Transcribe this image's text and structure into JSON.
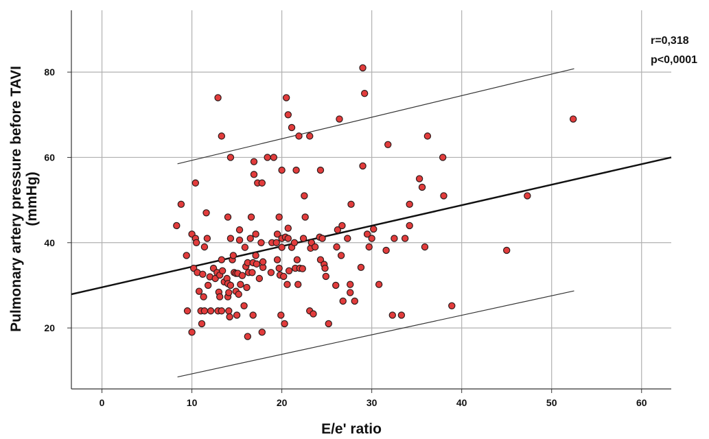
{
  "chart_data": {
    "type": "scatter",
    "x_label": "E/e' ratio",
    "y_label": [
      "Pulmonary artery pressure before TAVI",
      "(mmHg)"
    ],
    "annotations": [
      "r=0,318",
      "p<0,0001"
    ],
    "xlim": [
      -3.4,
      63.3
    ],
    "xticks": [
      0,
      10,
      20,
      30,
      40,
      50,
      60
    ],
    "ylim": [
      5.7,
      94.5
    ],
    "yticks": [
      20,
      40,
      60,
      80
    ],
    "grid": true,
    "color": "#e23c3c",
    "x": [
      8.3,
      8.8,
      9.4,
      9.5,
      10.0,
      10.0,
      10.4,
      10.2,
      10.4,
      10.5,
      10.6,
      10.8,
      11.0,
      11.1,
      11.2,
      11.3,
      11.4,
      11.4,
      11.6,
      11.7,
      11.8,
      12.0,
      12.1,
      12.4,
      12.6,
      12.8,
      12.9,
      12.9,
      13.0,
      13.1,
      13.1,
      13.3,
      13.3,
      13.3,
      13.4,
      13.6,
      13.9,
      14.0,
      14.0,
      14.0,
      14.1,
      14.1,
      14.2,
      14.3,
      14.3,
      14.3,
      14.5,
      14.6,
      14.7,
      14.9,
      14.9,
      15.0,
      15.1,
      15.2,
      15.3,
      15.3,
      15.4,
      15.6,
      15.8,
      15.9,
      16.0,
      16.1,
      16.2,
      16.2,
      16.3,
      16.5,
      16.6,
      16.7,
      16.8,
      16.8,
      16.9,
      16.9,
      17.1,
      17.1,
      17.2,
      17.3,
      17.5,
      17.7,
      17.8,
      17.8,
      17.9,
      17.9,
      18.4,
      18.8,
      18.9,
      19.1,
      19.4,
      19.5,
      19.5,
      19.7,
      19.7,
      19.8,
      19.9,
      20.0,
      20.0,
      20.0,
      20.2,
      20.3,
      20.4,
      20.5,
      20.6,
      20.7,
      20.7,
      20.7,
      20.8,
      21.1,
      21.1,
      21.4,
      21.5,
      21.6,
      21.7,
      21.8,
      21.9,
      22.0,
      22.3,
      22.4,
      22.5,
      22.6,
      23.1,
      23.1,
      23.2,
      23.3,
      23.5,
      23.7,
      24.2,
      24.3,
      24.3,
      24.5,
      24.7,
      24.8,
      24.9,
      25.2,
      26.0,
      26.1,
      26.2,
      26.4,
      26.6,
      26.7,
      26.8,
      27.3,
      27.6,
      27.6,
      27.7,
      28.1,
      28.8,
      29.0,
      29.0,
      29.2,
      29.5,
      29.7,
      30.0,
      30.2,
      30.8,
      31.6,
      31.8,
      32.3,
      32.5,
      33.3,
      33.7,
      34.2,
      34.2,
      35.3,
      35.6,
      35.9,
      36.2,
      37.9,
      38.0,
      38.9,
      45.0,
      47.3,
      52.4
    ],
    "values": [
      44,
      49,
      37,
      24,
      19,
      42,
      54,
      34,
      41,
      40,
      33,
      28.6,
      24,
      21,
      32.6,
      27.3,
      24,
      39,
      47,
      41,
      30,
      32,
      24,
      34,
      31.6,
      33,
      74,
      24,
      28.4,
      27.3,
      32.4,
      65,
      36,
      24,
      33.4,
      30.8,
      31.6,
      46,
      30.4,
      27.3,
      28.3,
      24,
      22.6,
      60,
      41,
      30,
      36,
      37,
      33,
      28.6,
      32.8,
      23,
      32.8,
      27.9,
      43,
      40.6,
      30.2,
      32.3,
      25.2,
      38.9,
      34.4,
      29.5,
      18,
      35.3,
      33,
      41,
      46,
      33,
      23,
      35.3,
      59,
      56,
      42,
      37,
      35,
      54,
      31.6,
      40,
      54,
      19,
      34.2,
      35.5,
      60,
      33,
      40,
      60,
      40,
      36,
      42,
      34,
      46,
      32.4,
      23,
      57,
      41,
      38.9,
      32.1,
      21,
      41.3,
      74,
      30.2,
      70,
      41,
      43.4,
      33.4,
      67,
      38.9,
      40,
      34,
      57,
      36,
      30.2,
      65,
      34,
      33.9,
      41,
      51,
      46,
      65,
      24,
      38.7,
      40,
      23.3,
      39,
      41.3,
      57,
      36,
      41,
      34.9,
      34,
      32.1,
      21,
      30,
      39,
      43,
      69,
      37,
      44,
      26.3,
      41,
      30.2,
      28.3,
      49,
      26.3,
      34.2,
      58,
      81,
      75,
      42,
      39,
      41,
      43.2,
      30.2,
      38.2,
      63,
      23,
      41,
      23,
      41,
      44,
      49,
      55,
      53,
      39,
      65,
      60,
      51,
      25.2,
      38.2,
      51,
      69
    ],
    "lines": [
      {
        "x": [
          -3.4,
          63.3
        ],
        "y": [
          27.9,
          60
        ],
        "width": 2.5,
        "color": "#111111"
      },
      {
        "x": [
          8.4,
          52.5
        ],
        "y": [
          58.5,
          80.8
        ],
        "width": 1.2,
        "color": "#333333"
      },
      {
        "x": [
          8.4,
          52.5
        ],
        "y": [
          8.5,
          28.7
        ],
        "width": 1.2,
        "color": "#333333"
      }
    ]
  }
}
